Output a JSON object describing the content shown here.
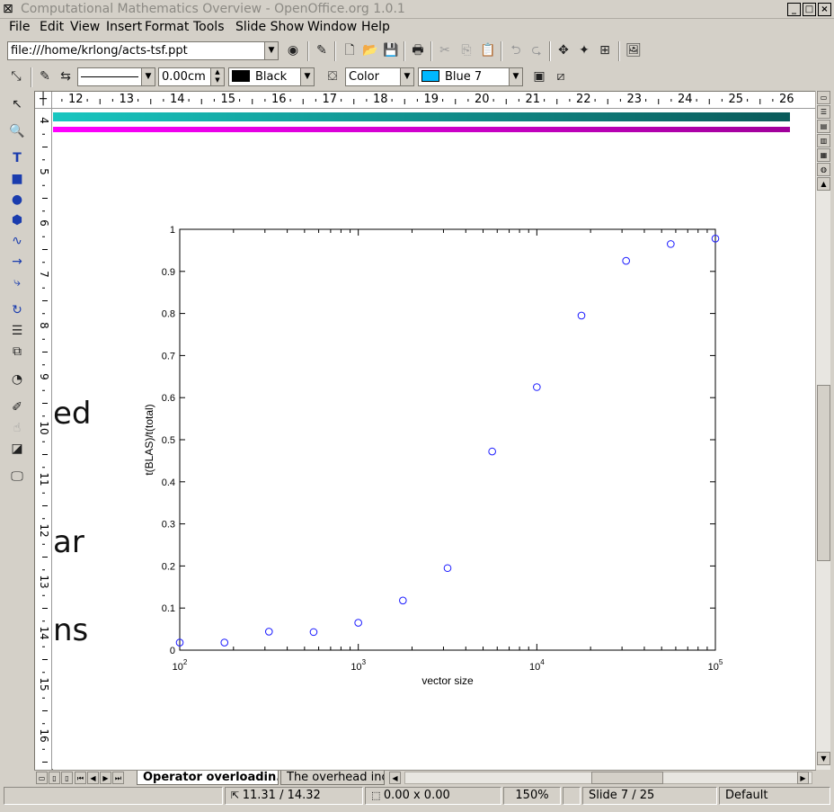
{
  "window": {
    "title": "Computational Mathematics Overview - OpenOffice.org 1.0.1",
    "app_icon": "openoffice-icon",
    "buttons": {
      "minimize": "_",
      "maximize": "□",
      "close": "×"
    }
  },
  "menu": [
    {
      "label": "File"
    },
    {
      "label": "Edit"
    },
    {
      "label": "View"
    },
    {
      "label": "Insert"
    },
    {
      "label": "Format"
    },
    {
      "label": "Tools"
    },
    {
      "label": "Slide Show"
    },
    {
      "label": "Window"
    },
    {
      "label": "Help"
    }
  ],
  "function_bar": {
    "url": "file:///home/krlong/acts-tsf.ppt"
  },
  "object_bar": {
    "line_width": "0.00cm",
    "line_color": "Black",
    "line_color_hex": "#000000",
    "area_style": "Color",
    "area_color": "Blue 7",
    "area_color_hex": "#00b8ff"
  },
  "ruler": {
    "h_ticks": [
      "12",
      "13",
      "14",
      "15",
      "16",
      "17",
      "18",
      "19",
      "20",
      "21",
      "22",
      "23",
      "24",
      "25",
      "26"
    ],
    "v_ticks": [
      "4",
      "5",
      "6",
      "7",
      "8",
      "9",
      "10",
      "11",
      "12",
      "13",
      "14",
      "15",
      "16"
    ]
  },
  "slide": {
    "fragments": [
      "ed",
      "ar",
      "ns"
    ],
    "colors": {
      "teal_band": "#18c6c0",
      "magenta_band": "#ff00ff",
      "marker": "#1a1aff"
    }
  },
  "chart_data": {
    "type": "scatter",
    "xscale": "log",
    "xlim": [
      100,
      100000
    ],
    "ylim": [
      0,
      1
    ],
    "xlabel": "vector size",
    "ylabel": "t(BLAS)/t(total)",
    "yticks": [
      "0",
      "0.1",
      "0.2",
      "0.3",
      "0.4",
      "0.5",
      "0.6",
      "0.7",
      "0.8",
      "0.9",
      "1"
    ],
    "xticks": [
      {
        "base": "10",
        "exp": "2",
        "value": 100
      },
      {
        "base": "10",
        "exp": "3",
        "value": 1000
      },
      {
        "base": "10",
        "exp": "4",
        "value": 10000
      },
      {
        "base": "10",
        "exp": "5",
        "value": 100000
      }
    ],
    "points": [
      {
        "x": 100,
        "y": 0.018
      },
      {
        "x": 178,
        "y": 0.018
      },
      {
        "x": 316,
        "y": 0.044
      },
      {
        "x": 562,
        "y": 0.043
      },
      {
        "x": 1000,
        "y": 0.065
      },
      {
        "x": 1778,
        "y": 0.118
      },
      {
        "x": 3162,
        "y": 0.195
      },
      {
        "x": 5623,
        "y": 0.472
      },
      {
        "x": 10000,
        "y": 0.625
      },
      {
        "x": 17783,
        "y": 0.795
      },
      {
        "x": 31623,
        "y": 0.925
      },
      {
        "x": 56234,
        "y": 0.965
      },
      {
        "x": 100000,
        "y": 0.978
      }
    ]
  },
  "tabs": [
    {
      "label": "Operator overloadin...",
      "active": true
    },
    {
      "label": "The overhead incl",
      "active": false
    }
  ],
  "status": {
    "position": "11.31 / 14.32",
    "size": "0.00 x 0.00",
    "zoom": "150%",
    "slide": "Slide 7 / 25",
    "layout": "Default"
  }
}
